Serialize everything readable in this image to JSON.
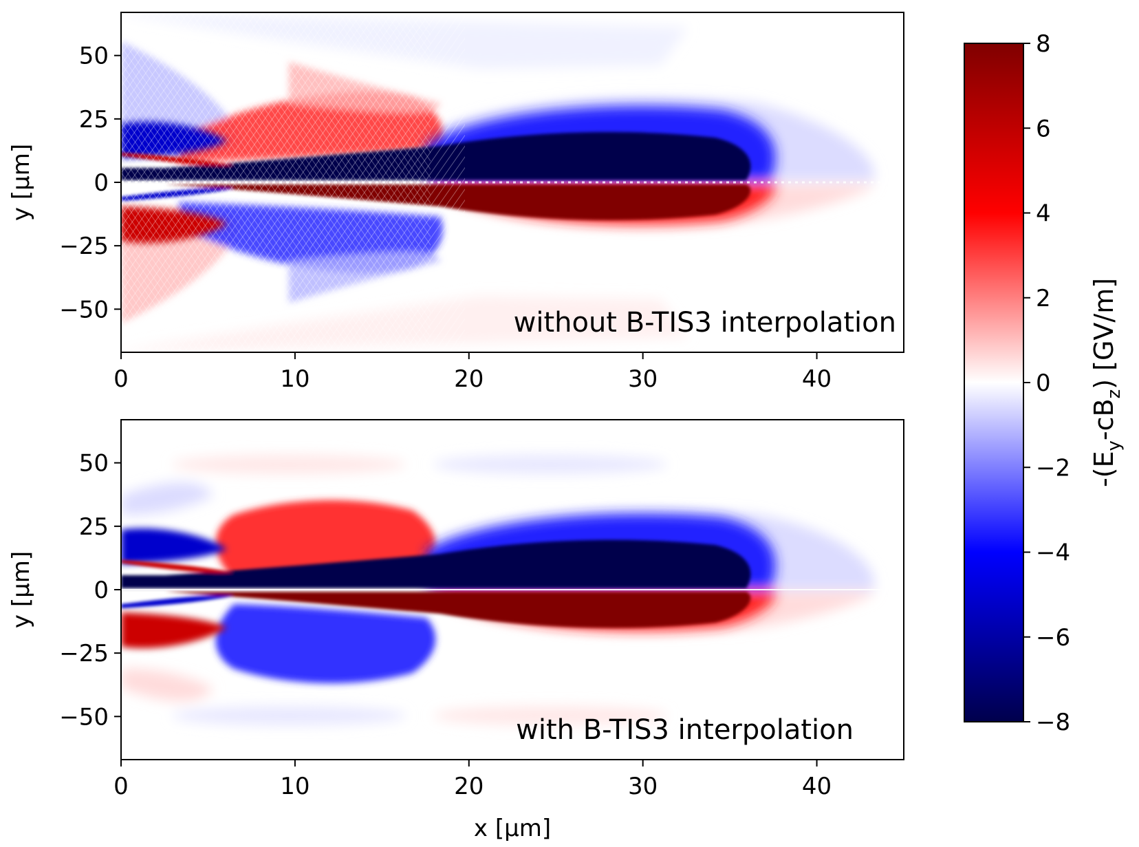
{
  "chart_data": {
    "type": "heatmap",
    "shared_x_axis": {
      "label": "x [µm]",
      "ticks": [
        0,
        10,
        20,
        30,
        40
      ],
      "range": [
        0,
        45
      ]
    },
    "shared_y_axis": {
      "label": "y [µm]",
      "ticks": [
        -50,
        -25,
        0,
        25,
        50
      ],
      "range": [
        -67,
        67
      ]
    },
    "colorbar": {
      "label_parts": [
        "-(E",
        "y",
        "-cB",
        "z",
        ") [GV/m]"
      ],
      "ticks": [
        -8,
        -6,
        -4,
        -2,
        0,
        2,
        4,
        6,
        8
      ],
      "range": [
        -8,
        8
      ],
      "colormap": "seismic",
      "colors": {
        "low": "#00004c",
        "mid_low": "#0000ff",
        "zero": "#ffffff",
        "mid_high": "#ff0000",
        "high": "#800000"
      }
    },
    "panels": [
      {
        "annotation": "without B-TIS3 interpolation",
        "features": [
          {
            "sign": -1,
            "x": 27,
            "y": 11,
            "peak": -8,
            "note": "main blue lobe above axis"
          },
          {
            "sign": 1,
            "x": 27,
            "y": -11,
            "peak": 8,
            "note": "main red lobe below axis"
          },
          {
            "sign": 1,
            "x": 10,
            "y": 16,
            "peak": 5,
            "note": "secondary red band, noisy"
          },
          {
            "sign": -1,
            "x": 10,
            "y": -16,
            "peak": -5,
            "note": "secondary blue band, noisy"
          },
          {
            "sign": -1,
            "x": 1,
            "y": 14,
            "peak": -8
          },
          {
            "sign": 1,
            "x": 1,
            "y": -14,
            "peak": 8
          }
        ],
        "numerical_noise": true
      },
      {
        "annotation": "with B-TIS3 interpolation",
        "features": [
          {
            "sign": -1,
            "x": 27,
            "y": 11,
            "peak": -8,
            "note": "main blue lobe above axis"
          },
          {
            "sign": 1,
            "x": 27,
            "y": -11,
            "peak": 8,
            "note": "main red lobe below axis"
          },
          {
            "sign": 1,
            "x": 11,
            "y": 16,
            "peak": 5,
            "note": "secondary red band, smooth"
          },
          {
            "sign": -1,
            "x": 11,
            "y": -16,
            "peak": -5,
            "note": "secondary blue band, smooth"
          },
          {
            "sign": -1,
            "x": 1,
            "y": 14,
            "peak": -8
          },
          {
            "sign": 1,
            "x": 1,
            "y": -14,
            "peak": 8
          }
        ],
        "numerical_noise": false
      }
    ]
  }
}
